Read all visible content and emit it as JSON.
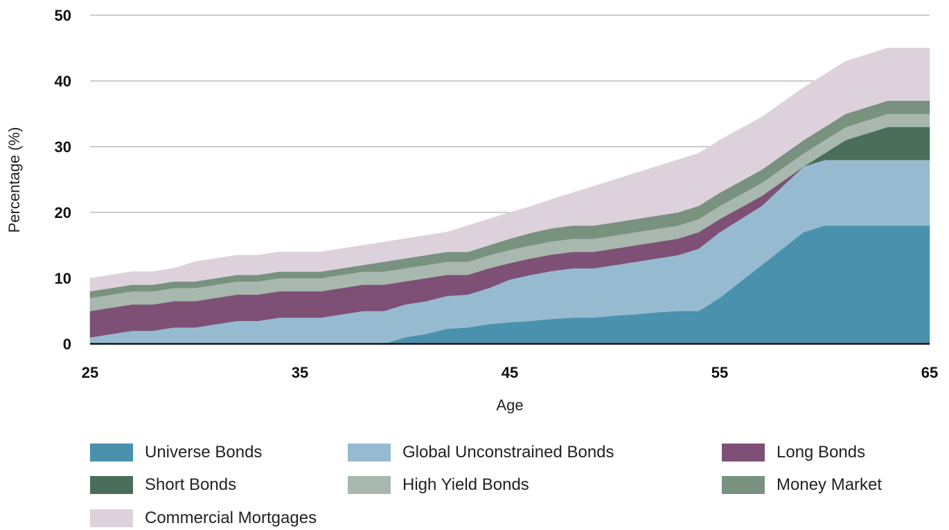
{
  "chart_data": {
    "type": "area",
    "stacked": true,
    "title": "",
    "xlabel": "Age",
    "ylabel": "Percentage (%)",
    "xlim": [
      25,
      65
    ],
    "ylim": [
      0,
      50
    ],
    "x_ticks": [
      25,
      35,
      45,
      55,
      65
    ],
    "y_ticks": [
      0,
      10,
      20,
      30,
      40,
      50
    ],
    "grid": "horizontal",
    "legend_position": "bottom",
    "x": [
      25,
      27,
      28,
      29,
      30,
      32,
      33,
      34,
      36,
      38,
      39,
      40,
      41,
      42,
      43,
      44,
      45,
      46,
      47,
      48,
      49,
      50,
      51,
      52,
      53,
      54,
      55,
      57,
      59,
      60,
      61,
      63,
      65
    ],
    "series": [
      {
        "name": "Universe Bonds",
        "color": "#4a91ae",
        "values": [
          0,
          0,
          0,
          0,
          0,
          0,
          0,
          0,
          0,
          0,
          0,
          1,
          1.5,
          2.3,
          2.5,
          3,
          3.3,
          3.5,
          3.8,
          4,
          4,
          4.3,
          4.5,
          4.8,
          5,
          5,
          7,
          12,
          17,
          18,
          18,
          18,
          18
        ]
      },
      {
        "name": "Global Unconstrained Bonds",
        "color": "#96bbd0",
        "values": [
          1,
          2,
          2,
          2.5,
          2.5,
          3.5,
          3.5,
          4,
          4,
          5,
          5,
          5,
          5,
          5,
          5,
          5.5,
          6.5,
          7,
          7.3,
          7.5,
          7.5,
          7.7,
          8,
          8.2,
          8.5,
          9.5,
          10,
          9,
          10,
          10,
          10,
          10,
          10
        ]
      },
      {
        "name": "Long Bonds",
        "color": "#7e5075",
        "values": [
          4,
          4,
          4,
          4,
          4,
          4,
          4,
          4,
          4,
          4,
          4,
          3.5,
          3.5,
          3.2,
          3,
          3,
          2.5,
          2.5,
          2.5,
          2.5,
          2.5,
          2.5,
          2.5,
          2.5,
          2.5,
          2.5,
          2,
          1.5,
          0,
          0,
          0,
          0,
          0
        ]
      },
      {
        "name": "Short Bonds",
        "color": "#4a6e59",
        "values": [
          0,
          0,
          0,
          0,
          0,
          0,
          0,
          0,
          0,
          0,
          0,
          0,
          0,
          0,
          0,
          0,
          0,
          0,
          0,
          0,
          0,
          0,
          0,
          0,
          0,
          0,
          0,
          0,
          0,
          1,
          3,
          5,
          5
        ]
      },
      {
        "name": "High Yield Bonds",
        "color": "#a8b8ae",
        "values": [
          2,
          2,
          2,
          2,
          2,
          2,
          2,
          2,
          2,
          2,
          2,
          2,
          2,
          2,
          2,
          2,
          2,
          2,
          2,
          2,
          2,
          2,
          2,
          2,
          2,
          2,
          2,
          2,
          2,
          2,
          2,
          2,
          2
        ]
      },
      {
        "name": "Money Market",
        "color": "#799280",
        "values": [
          1,
          1,
          1,
          1,
          1,
          1,
          1,
          1,
          1,
          1,
          1.5,
          1.5,
          1.5,
          1.5,
          1.5,
          1.5,
          1.7,
          1.9,
          2,
          2,
          2,
          2,
          2,
          2,
          2,
          2,
          2,
          2,
          2,
          2,
          2,
          2,
          2
        ]
      },
      {
        "name": "Commercial Mortgages",
        "color": "#ddd1dc",
        "values": [
          2,
          2,
          2,
          2,
          3,
          3,
          3,
          3,
          3,
          3,
          3,
          3,
          3,
          3,
          4,
          4,
          4,
          4,
          4.4,
          5,
          6,
          6.5,
          7,
          7.5,
          8,
          8,
          8,
          8,
          8,
          8,
          8,
          8,
          8
        ]
      }
    ]
  }
}
